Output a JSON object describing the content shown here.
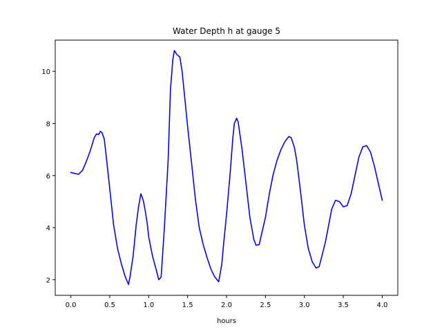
{
  "chart_data": {
    "type": "line",
    "title": "Water Depth h at gauge 5",
    "xlabel": "hours",
    "ylabel": "",
    "xlim": [
      -0.2,
      4.2
    ],
    "ylim": [
      1.4,
      11.2
    ],
    "xticks": [
      0.0,
      0.5,
      1.0,
      1.5,
      2.0,
      2.5,
      3.0,
      3.5,
      4.0
    ],
    "xtick_labels": [
      "0.0",
      "0.5",
      "1.0",
      "1.5",
      "2.0",
      "2.5",
      "3.0",
      "3.5",
      "4.0"
    ],
    "yticks": [
      2,
      4,
      6,
      8,
      10
    ],
    "ytick_labels": [
      "2",
      "4",
      "6",
      "8",
      "10"
    ],
    "grid": false,
    "legend": "none",
    "series": [
      {
        "color": "#0000ff",
        "x": [
          0.0,
          0.05,
          0.1,
          0.15,
          0.2,
          0.25,
          0.3,
          0.33,
          0.36,
          0.38,
          0.4,
          0.43,
          0.46,
          0.5,
          0.55,
          0.6,
          0.65,
          0.7,
          0.74,
          0.76,
          0.8,
          0.84,
          0.87,
          0.9,
          0.93,
          0.95,
          0.98,
          1.0,
          1.05,
          1.1,
          1.13,
          1.16,
          1.2,
          1.25,
          1.28,
          1.3,
          1.31,
          1.33,
          1.36,
          1.4,
          1.43,
          1.46,
          1.5,
          1.55,
          1.6,
          1.65,
          1.7,
          1.75,
          1.8,
          1.85,
          1.9,
          1.94,
          1.96,
          2.0,
          2.05,
          2.08,
          2.1,
          2.13,
          2.15,
          2.2,
          2.25,
          2.3,
          2.35,
          2.38,
          2.42,
          2.5,
          2.55,
          2.6,
          2.65,
          2.7,
          2.75,
          2.8,
          2.83,
          2.87,
          2.9,
          2.95,
          3.0,
          3.05,
          3.1,
          3.15,
          3.19,
          3.22,
          3.27,
          3.3,
          3.35,
          3.4,
          3.45,
          3.5,
          3.55,
          3.6,
          3.65,
          3.7,
          3.75,
          3.8,
          3.85,
          3.9,
          3.95,
          4.0
        ],
        "y": [
          6.12,
          6.08,
          6.05,
          6.2,
          6.55,
          6.95,
          7.45,
          7.6,
          7.58,
          7.7,
          7.65,
          7.4,
          6.6,
          5.5,
          4.1,
          3.2,
          2.6,
          2.1,
          1.82,
          2.1,
          2.9,
          4.1,
          4.8,
          5.3,
          5.05,
          4.75,
          4.2,
          3.65,
          2.9,
          2.35,
          2.0,
          2.1,
          3.9,
          6.6,
          9.3,
          10.05,
          10.45,
          10.8,
          10.65,
          10.55,
          10.0,
          9.1,
          7.9,
          6.5,
          5.1,
          4.0,
          3.35,
          2.85,
          2.4,
          2.1,
          1.92,
          2.6,
          3.3,
          4.5,
          6.2,
          7.4,
          8.0,
          8.2,
          8.05,
          7.0,
          5.7,
          4.4,
          3.55,
          3.32,
          3.35,
          4.4,
          5.3,
          6.05,
          6.6,
          7.0,
          7.3,
          7.5,
          7.45,
          7.1,
          6.6,
          5.4,
          4.1,
          3.2,
          2.7,
          2.45,
          2.5,
          2.85,
          3.45,
          3.9,
          4.7,
          5.05,
          5.0,
          4.8,
          4.85,
          5.3,
          6.0,
          6.7,
          7.1,
          7.15,
          6.9,
          6.35,
          5.7,
          5.05
        ]
      }
    ]
  }
}
